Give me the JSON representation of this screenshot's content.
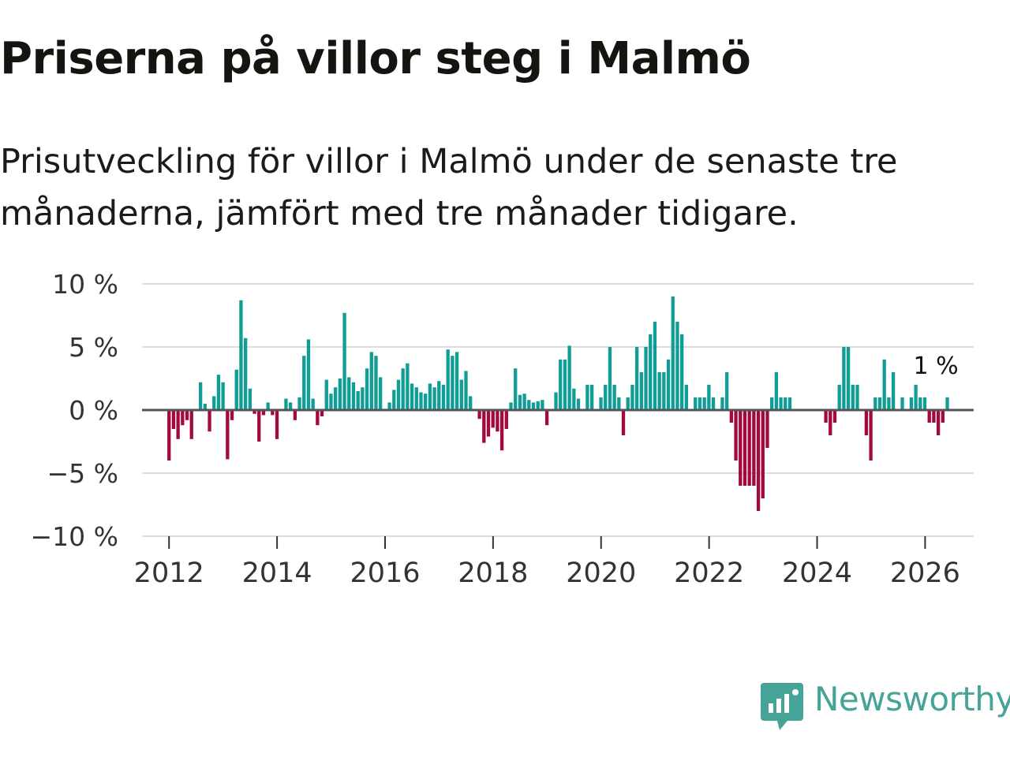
{
  "title": "Priserna på villor steg i Malmö",
  "subtitle": "Prisutveckling för villor i Malmö under de senaste tre månaderna, jämfört med tre månader tidigare.",
  "brand": {
    "name": "Newsworthy",
    "color": "#45a398",
    "icon": "newsworthy-logo-icon"
  },
  "colors": {
    "positive": "#0f9e95",
    "negative": "#a3093f",
    "grid": "#dddddd",
    "zero_line": "#555555"
  },
  "chart_data": {
    "type": "bar",
    "title": "Priserna på villor steg i Malmö",
    "xlabel": "",
    "ylabel": "",
    "ylim": [
      -10,
      10
    ],
    "xlim": [
      2011.5,
      2026.9
    ],
    "y_ticks": [
      10,
      5,
      0,
      -5,
      -10
    ],
    "y_tick_labels": [
      "10 %",
      "5 %",
      "0 %",
      "−5 %",
      "−10 %"
    ],
    "x_ticks": [
      2012,
      2014,
      2016,
      2018,
      2020,
      2022,
      2024,
      2026
    ],
    "x_tick_labels": [
      "2012",
      "2014",
      "2016",
      "2018",
      "2020",
      "2022",
      "2024",
      "2026"
    ],
    "grid": true,
    "annotation": {
      "text": "1 %",
      "x": 2026.17,
      "y": 1
    },
    "series": [
      {
        "name": "Prisutveckling",
        "start": 2012.0,
        "step": 0.0833,
        "values": [
          -4,
          -1.5,
          -2.3,
          -1.2,
          -0.8,
          -2.3,
          0,
          2.2,
          0.5,
          -1.7,
          1.1,
          2.8,
          2.2,
          -3.9,
          -0.8,
          3.2,
          8.7,
          5.7,
          1.7,
          -0.3,
          -2.5,
          -0.4,
          0.6,
          -0.4,
          -2.3,
          0,
          0.9,
          0.6,
          -0.8,
          1,
          4.3,
          5.6,
          0.9,
          -1.2,
          -0.5,
          2.4,
          1.3,
          1.8,
          2.5,
          7.7,
          2.6,
          2.2,
          1.5,
          1.8,
          3.3,
          4.6,
          4.3,
          2.6,
          0.1,
          0.6,
          1.6,
          2.4,
          3.3,
          3.7,
          2.1,
          1.8,
          1.4,
          1.3,
          2.1,
          1.8,
          2.3,
          2,
          4.8,
          4.3,
          4.6,
          2.4,
          3.1,
          1.1,
          0,
          -0.7,
          -2.6,
          -2.1,
          -1.4,
          -1.7,
          -3.2,
          -1.5,
          0.6,
          3.3,
          1.2,
          1.3,
          0.8,
          0.6,
          0.7,
          0.8,
          -1.2,
          0,
          1.4,
          4,
          4,
          5.1,
          1.7,
          0.9,
          0,
          2,
          2,
          0,
          1,
          2,
          5,
          2,
          1,
          -2,
          1,
          2,
          5,
          3,
          5,
          6,
          7,
          3,
          3,
          4,
          9,
          7,
          6,
          2,
          0,
          1,
          1,
          1,
          2,
          1,
          0,
          1,
          3,
          -1,
          -4,
          -6,
          -6,
          -6,
          -6,
          -8,
          -7,
          -3,
          1,
          3,
          1,
          1,
          1,
          0,
          0,
          0,
          0,
          0,
          0,
          0,
          -1,
          -2,
          -1,
          2,
          5,
          5,
          2,
          2,
          0,
          -2,
          -4,
          1,
          1,
          4,
          1,
          3,
          0,
          1,
          0,
          1,
          2,
          1,
          1,
          -1,
          -1,
          -2,
          -1,
          1
        ]
      }
    ]
  }
}
